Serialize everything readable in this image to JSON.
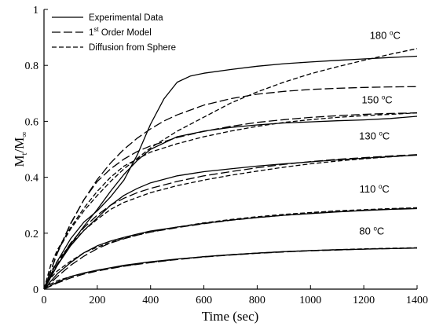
{
  "chart_data": {
    "type": "line",
    "xlabel": "Time (sec)",
    "ylabel_main": "M",
    "ylabel_sub1": "t",
    "ylabel_mid": "/M",
    "ylabel_sub2": "∞",
    "xlim": [
      0,
      1400
    ],
    "ylim": [
      0,
      1
    ],
    "xticks": [
      0,
      200,
      400,
      600,
      800,
      1000,
      1200,
      1400
    ],
    "yticks": [
      0,
      0.2,
      0.4,
      0.6,
      0.8,
      1
    ],
    "grid": false,
    "legend_position": "top-left",
    "legend": [
      {
        "pre": "Experimental Data",
        "sup": "",
        "post": "",
        "style": "solid"
      },
      {
        "pre": "1",
        "sup": "st",
        "post": " Order Model",
        "style": "longdash"
      },
      {
        "pre": "Diffusion from Sphere",
        "sup": "",
        "post": "",
        "style": "shortdash"
      }
    ],
    "groups": [
      {
        "label_value": "180",
        "label_unit": "C",
        "label_at": [
          1280,
          0.895
        ],
        "experimental": {
          "x": [
            0,
            50,
            100,
            150,
            200,
            250,
            300,
            350,
            400,
            450,
            500,
            550,
            600,
            700,
            800,
            900,
            1000,
            1100,
            1200,
            1300,
            1400
          ],
          "y": [
            0,
            0.1,
            0.18,
            0.24,
            0.28,
            0.33,
            0.39,
            0.48,
            0.59,
            0.68,
            0.74,
            0.762,
            0.772,
            0.785,
            0.797,
            0.806,
            0.812,
            0.818,
            0.823,
            0.828,
            0.833
          ]
        },
        "first_order": {
          "x": [
            0,
            50,
            100,
            150,
            200,
            250,
            300,
            350,
            400,
            450,
            500,
            600,
            700,
            800,
            900,
            1000,
            1100,
            1200,
            1300,
            1400
          ],
          "y": [
            0,
            0.128,
            0.233,
            0.32,
            0.392,
            0.451,
            0.5,
            0.54,
            0.573,
            0.601,
            0.623,
            0.658,
            0.681,
            0.697,
            0.707,
            0.714,
            0.718,
            0.721,
            0.723,
            0.724
          ]
        },
        "diffusion": {
          "x": [
            0,
            25,
            50,
            100,
            150,
            200,
            250,
            300,
            400,
            500,
            600,
            700,
            800,
            900,
            1000,
            1100,
            1200,
            1300,
            1400
          ],
          "y": [
            0,
            0.085,
            0.135,
            0.215,
            0.28,
            0.335,
            0.385,
            0.43,
            0.505,
            0.565,
            0.615,
            0.665,
            0.705,
            0.74,
            0.77,
            0.795,
            0.818,
            0.84,
            0.86
          ]
        }
      },
      {
        "label_value": "150",
        "label_unit": "C",
        "label_at": [
          1250,
          0.665
        ],
        "experimental": {
          "x": [
            0,
            50,
            100,
            150,
            200,
            250,
            300,
            350,
            400,
            500,
            600,
            700,
            800,
            900,
            1000,
            1100,
            1200,
            1300,
            1400
          ],
          "y": [
            0,
            0.085,
            0.16,
            0.225,
            0.285,
            0.35,
            0.41,
            0.46,
            0.5,
            0.545,
            0.565,
            0.578,
            0.587,
            0.594,
            0.598,
            0.602,
            0.605,
            0.61,
            0.618
          ]
        },
        "first_order": {
          "x": [
            0,
            50,
            100,
            150,
            200,
            250,
            300,
            350,
            400,
            500,
            600,
            700,
            800,
            900,
            1000,
            1100,
            1200,
            1300,
            1400
          ],
          "y": [
            0,
            0.13,
            0.235,
            0.32,
            0.385,
            0.43,
            0.465,
            0.492,
            0.512,
            0.542,
            0.564,
            0.582,
            0.596,
            0.606,
            0.614,
            0.62,
            0.625,
            0.628,
            0.63
          ]
        },
        "diffusion": {
          "x": [
            0,
            25,
            50,
            100,
            150,
            200,
            250,
            300,
            400,
            500,
            600,
            700,
            800,
            900,
            1000,
            1100,
            1200,
            1300,
            1400
          ],
          "y": [
            0,
            0.085,
            0.14,
            0.22,
            0.29,
            0.35,
            0.4,
            0.44,
            0.49,
            0.52,
            0.545,
            0.565,
            0.582,
            0.596,
            0.606,
            0.614,
            0.62,
            0.625,
            0.63
          ]
        }
      },
      {
        "label_value": "130",
        "label_unit": "C",
        "label_at": [
          1240,
          0.535
        ],
        "experimental": {
          "x": [
            0,
            50,
            100,
            150,
            200,
            250,
            300,
            350,
            400,
            500,
            600,
            700,
            800,
            900,
            1000,
            1100,
            1200,
            1300,
            1400
          ],
          "y": [
            0,
            0.085,
            0.155,
            0.21,
            0.255,
            0.3,
            0.335,
            0.36,
            0.38,
            0.405,
            0.42,
            0.43,
            0.44,
            0.448,
            0.455,
            0.462,
            0.468,
            0.474,
            0.479
          ]
        },
        "first_order": {
          "x": [
            0,
            50,
            100,
            150,
            200,
            250,
            300,
            350,
            400,
            500,
            600,
            700,
            800,
            900,
            1000,
            1100,
            1200,
            1300,
            1400
          ],
          "y": [
            0,
            0.09,
            0.165,
            0.22,
            0.265,
            0.3,
            0.325,
            0.345,
            0.36,
            0.385,
            0.405,
            0.42,
            0.434,
            0.446,
            0.456,
            0.464,
            0.47,
            0.476,
            0.481
          ]
        },
        "diffusion": {
          "x": [
            0,
            25,
            50,
            100,
            150,
            200,
            250,
            300,
            400,
            500,
            600,
            700,
            800,
            900,
            1000,
            1100,
            1200,
            1300,
            1400
          ],
          "y": [
            0,
            0.06,
            0.1,
            0.16,
            0.21,
            0.25,
            0.285,
            0.31,
            0.345,
            0.37,
            0.39,
            0.407,
            0.422,
            0.436,
            0.448,
            0.458,
            0.466,
            0.473,
            0.48
          ]
        }
      },
      {
        "label_value": "110",
        "label_unit": "C",
        "label_at": [
          1240,
          0.345
        ],
        "experimental": {
          "x": [
            0,
            50,
            100,
            150,
            200,
            250,
            300,
            350,
            400,
            500,
            600,
            700,
            800,
            900,
            1000,
            1100,
            1200,
            1300,
            1400
          ],
          "y": [
            0,
            0.055,
            0.095,
            0.13,
            0.155,
            0.172,
            0.185,
            0.197,
            0.208,
            0.222,
            0.235,
            0.247,
            0.256,
            0.264,
            0.27,
            0.276,
            0.281,
            0.285,
            0.288
          ]
        },
        "first_order": {
          "x": [
            0,
            50,
            100,
            150,
            200,
            250,
            300,
            350,
            400,
            500,
            600,
            700,
            800,
            900,
            1000,
            1100,
            1200,
            1300,
            1400
          ],
          "y": [
            0,
            0.045,
            0.085,
            0.118,
            0.145,
            0.165,
            0.18,
            0.193,
            0.204,
            0.22,
            0.234,
            0.246,
            0.256,
            0.264,
            0.271,
            0.277,
            0.282,
            0.286,
            0.289
          ]
        },
        "diffusion": {
          "x": [
            0,
            25,
            50,
            100,
            150,
            200,
            250,
            300,
            400,
            500,
            600,
            700,
            800,
            900,
            1000,
            1100,
            1200,
            1300,
            1400
          ],
          "y": [
            0,
            0.04,
            0.065,
            0.1,
            0.13,
            0.15,
            0.167,
            0.182,
            0.205,
            0.222,
            0.237,
            0.249,
            0.259,
            0.267,
            0.274,
            0.28,
            0.284,
            0.288,
            0.291
          ]
        }
      },
      {
        "label_value": "80",
        "label_unit": "C",
        "label_at": [
          1230,
          0.195
        ],
        "experimental": {
          "x": [
            0,
            50,
            100,
            150,
            200,
            300,
            400,
            500,
            600,
            700,
            800,
            900,
            1000,
            1100,
            1200,
            1300,
            1400
          ],
          "y": [
            0,
            0.025,
            0.045,
            0.058,
            0.068,
            0.085,
            0.098,
            0.108,
            0.116,
            0.123,
            0.129,
            0.134,
            0.138,
            0.141,
            0.143,
            0.145,
            0.147
          ]
        },
        "first_order": {
          "x": [
            0,
            50,
            100,
            150,
            200,
            300,
            400,
            500,
            600,
            700,
            800,
            900,
            1000,
            1100,
            1200,
            1300,
            1400
          ],
          "y": [
            0,
            0.022,
            0.04,
            0.054,
            0.065,
            0.082,
            0.095,
            0.106,
            0.115,
            0.122,
            0.128,
            0.133,
            0.137,
            0.14,
            0.143,
            0.145,
            0.147
          ]
        },
        "diffusion": {
          "x": [
            0,
            25,
            50,
            100,
            150,
            200,
            300,
            400,
            500,
            600,
            700,
            800,
            900,
            1000,
            1100,
            1200,
            1300,
            1400
          ],
          "y": [
            0,
            0.018,
            0.03,
            0.045,
            0.057,
            0.067,
            0.083,
            0.096,
            0.107,
            0.116,
            0.123,
            0.129,
            0.134,
            0.138,
            0.141,
            0.144,
            0.146,
            0.148
          ]
        }
      }
    ]
  }
}
